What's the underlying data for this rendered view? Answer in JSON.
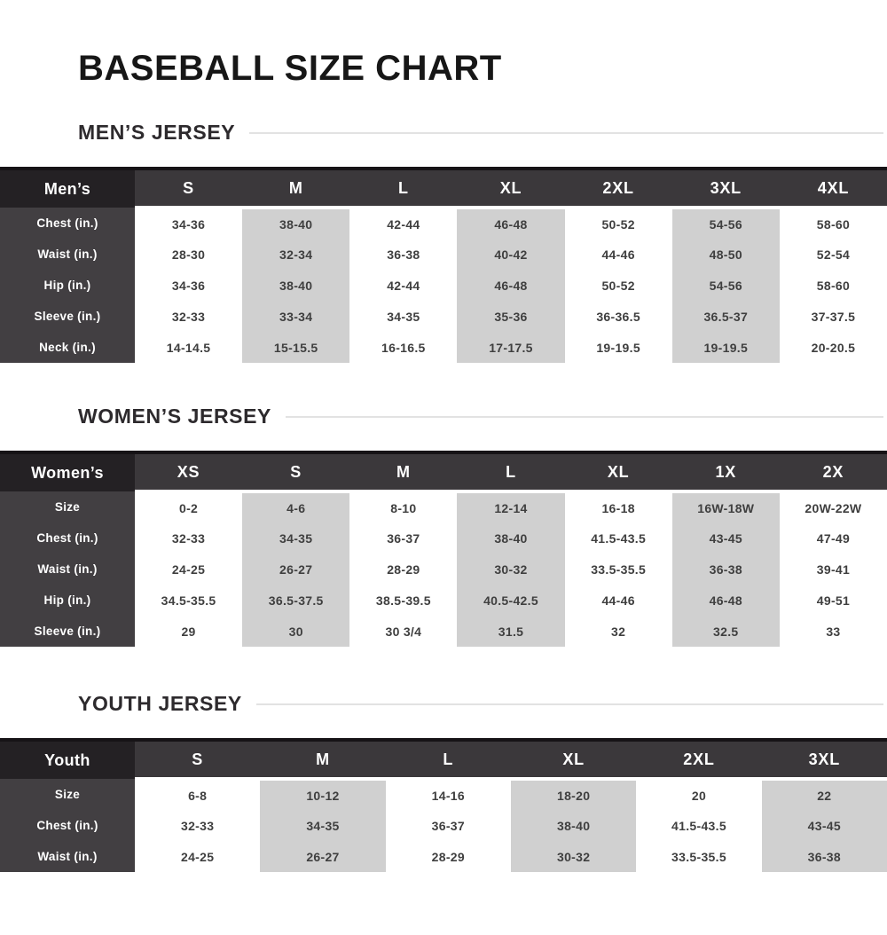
{
  "page": {
    "title": "BASEBALL SIZE CHART"
  },
  "colors": {
    "header_row_bg": "#3b383b",
    "corner_cell_bg": "#242124",
    "row_label_bg": "#423f42",
    "shaded_column_bg": "#d0d0d0",
    "heading_text": "#2d2a2d",
    "rule_line": "#e2e2e2",
    "body_text": "#3f3f3f"
  },
  "sections": [
    {
      "id": "mens",
      "heading": "MEN’S JERSEY",
      "table": {
        "corner": "Men’s",
        "columns": [
          "S",
          "M",
          "L",
          "XL",
          "2XL",
          "3XL",
          "4XL"
        ],
        "shaded_columns": [
          1,
          3,
          5
        ],
        "rows": [
          {
            "label": "Chest (in.)",
            "values": [
              "34-36",
              "38-40",
              "42-44",
              "46-48",
              "50-52",
              "54-56",
              "58-60"
            ]
          },
          {
            "label": "Waist (in.)",
            "values": [
              "28-30",
              "32-34",
              "36-38",
              "40-42",
              "44-46",
              "48-50",
              "52-54"
            ]
          },
          {
            "label": "Hip (in.)",
            "values": [
              "34-36",
              "38-40",
              "42-44",
              "46-48",
              "50-52",
              "54-56",
              "58-60"
            ]
          },
          {
            "label": "Sleeve (in.)",
            "values": [
              "32-33",
              "33-34",
              "34-35",
              "35-36",
              "36-36.5",
              "36.5-37",
              "37-37.5"
            ]
          },
          {
            "label": "Neck (in.)",
            "values": [
              "14-14.5",
              "15-15.5",
              "16-16.5",
              "17-17.5",
              "19-19.5",
              "19-19.5",
              "20-20.5"
            ]
          }
        ]
      }
    },
    {
      "id": "womens",
      "heading": "WOMEN’S JERSEY",
      "table": {
        "corner": "Women’s",
        "columns": [
          "XS",
          "S",
          "M",
          "L",
          "XL",
          "1X",
          "2X"
        ],
        "shaded_columns": [
          1,
          3,
          5
        ],
        "rows": [
          {
            "label": "Size",
            "values": [
              "0-2",
              "4-6",
              "8-10",
              "12-14",
              "16-18",
              "16W-18W",
              "20W-22W"
            ]
          },
          {
            "label": "Chest (in.)",
            "values": [
              "32-33",
              "34-35",
              "36-37",
              "38-40",
              "41.5-43.5",
              "43-45",
              "47-49"
            ]
          },
          {
            "label": "Waist (in.)",
            "values": [
              "24-25",
              "26-27",
              "28-29",
              "30-32",
              "33.5-35.5",
              "36-38",
              "39-41"
            ]
          },
          {
            "label": "Hip (in.)",
            "values": [
              "34.5-35.5",
              "36.5-37.5",
              "38.5-39.5",
              "40.5-42.5",
              "44-46",
              "46-48",
              "49-51"
            ]
          },
          {
            "label": "Sleeve (in.)",
            "values": [
              "29",
              "30",
              "30 3/4",
              "31.5",
              "32",
              "32.5",
              "33"
            ]
          }
        ]
      }
    },
    {
      "id": "youth",
      "heading": "YOUTH JERSEY",
      "table": {
        "corner": "Youth",
        "columns": [
          "S",
          "M",
          "L",
          "XL",
          "2XL",
          "3XL"
        ],
        "shaded_columns": [
          1,
          3,
          5
        ],
        "rows": [
          {
            "label": "Size",
            "values": [
              "6-8",
              "10-12",
              "14-16",
              "18-20",
              "20",
              "22"
            ]
          },
          {
            "label": "Chest (in.)",
            "values": [
              "32-33",
              "34-35",
              "36-37",
              "38-40",
              "41.5-43.5",
              "43-45"
            ]
          },
          {
            "label": "Waist (in.)",
            "values": [
              "24-25",
              "26-27",
              "28-29",
              "30-32",
              "33.5-35.5",
              "36-38"
            ]
          }
        ]
      }
    }
  ]
}
